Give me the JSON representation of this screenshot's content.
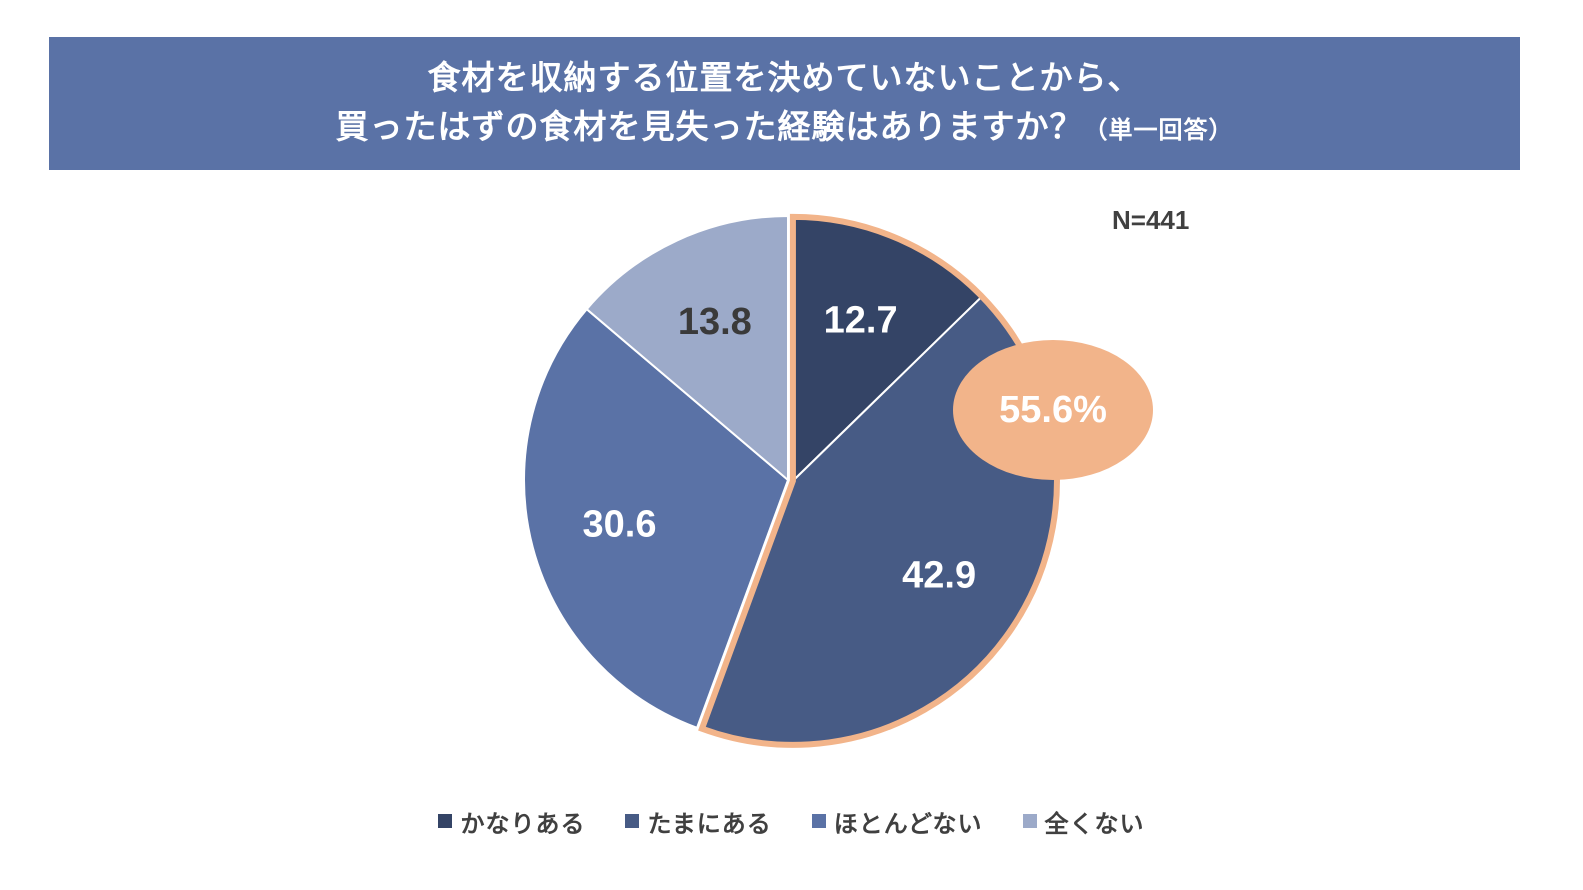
{
  "title": {
    "line1": "食材を収納する位置を決めていないことから、",
    "line2": "買ったはずの食材を見失った経験はありますか？",
    "suffix": "（単一回答）"
  },
  "sample_size": "N=441",
  "highlight": {
    "label": "55.6%",
    "fill_color": "#f2b48a",
    "outline_color": "#f2b48a",
    "categories": [
      "かなりある",
      "たまにある"
    ]
  },
  "colors": {
    "banner": "#5a72a6",
    "slice_label_light": "#ffffff",
    "slice_label_dark": "#3a3a3a"
  },
  "chart_data": {
    "type": "pie",
    "title": "食材を収納する位置を決めていないことから、買ったはずの食材を見失った経験はありますか？（単一回答）",
    "start": "top",
    "direction": "clockwise",
    "unit": "%",
    "legend_position": "bottom",
    "slices": [
      {
        "label": "かなりある",
        "value": 12.7,
        "display": "12.7",
        "color": "#344466"
      },
      {
        "label": "たまにある",
        "value": 42.9,
        "display": "42.9",
        "color": "#475b85"
      },
      {
        "label": "ほとんどない",
        "value": 30.6,
        "display": "30.6",
        "color": "#5a72a6"
      },
      {
        "label": "全くない",
        "value": 13.8,
        "display": "13.8",
        "color": "#9caac9"
      }
    ]
  }
}
